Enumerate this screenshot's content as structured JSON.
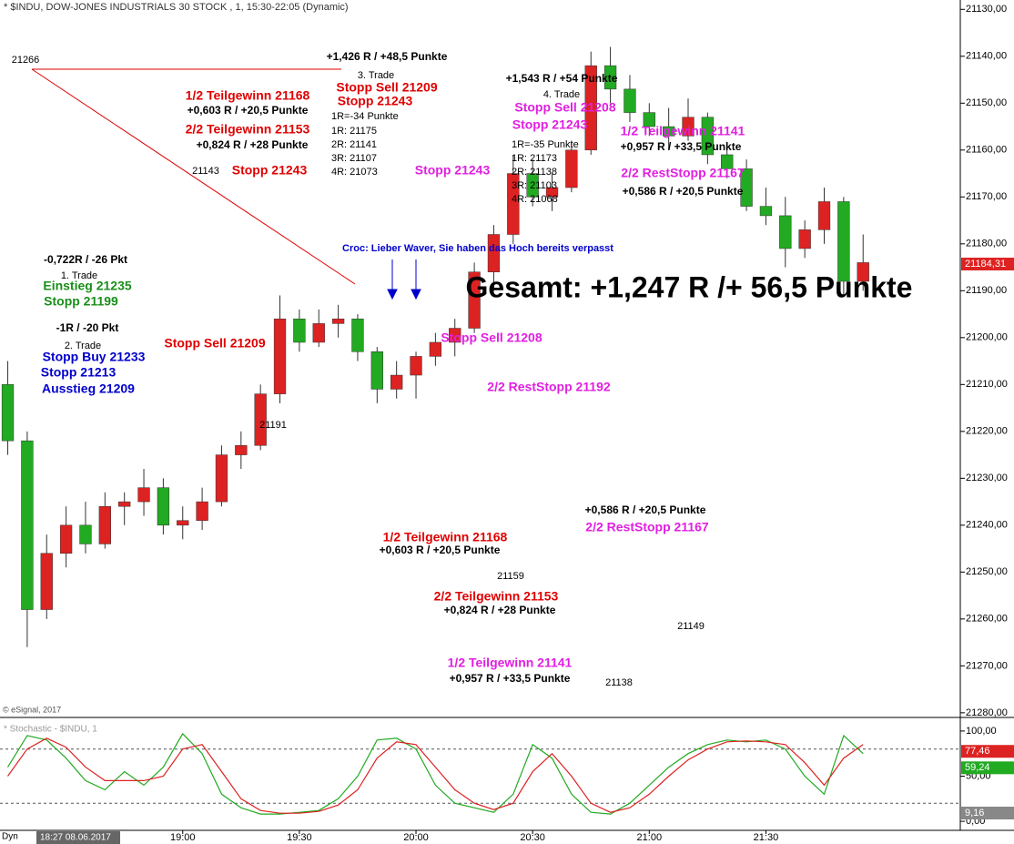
{
  "chart_data": [
    {
      "type": "candlestick",
      "title": "* $INDU, DOW-JONES INDUSTRIALS 30 STOCK , 1, 15:30-22:05 (Dynamic)",
      "copyright": "© eSignal, 2017",
      "x": [
        1095,
        1100,
        1105,
        1110,
        1115,
        1120,
        1125,
        1130,
        1135,
        1140,
        1145,
        1150,
        1155,
        1160,
        1165,
        1170,
        1175,
        1180,
        1185,
        1190,
        1195,
        1200,
        1205,
        1210,
        1215,
        1220,
        1225,
        1230,
        1235,
        1240,
        1245,
        1250,
        1255,
        1260,
        1265,
        1270,
        1275,
        1280,
        1285,
        1290,
        1295,
        1300,
        1305,
        1310,
        1315
      ],
      "open": [
        21210,
        21222,
        21258,
        21246,
        21240,
        21244,
        21236,
        21235,
        21232,
        21240,
        21239,
        21235,
        21225,
        21223,
        21212,
        21196,
        21201,
        21197,
        21196,
        21203,
        21211,
        21208,
        21204,
        21201,
        21198,
        21186,
        21178,
        21165,
        21170,
        21168,
        21160,
        21142,
        21147,
        21152,
        21155,
        21157,
        21153,
        21161,
        21164,
        21172,
        21174,
        21181,
        21177,
        21171,
        21188
      ],
      "high": [
        21225,
        21266,
        21260,
        21249,
        21246,
        21245,
        21240,
        21238,
        21242,
        21243,
        21241,
        21236,
        21228,
        21224,
        21214,
        21203,
        21202,
        21200,
        21205,
        21214,
        21213,
        21213,
        21206,
        21204,
        21199,
        21190,
        21180,
        21172,
        21173,
        21169,
        21161,
        21150,
        21154,
        21157,
        21160,
        21158,
        21163,
        21166,
        21173,
        21176,
        21185,
        21183,
        21180,
        21191,
        21190
      ],
      "low": [
        21205,
        21220,
        21242,
        21236,
        21235,
        21233,
        21233,
        21228,
        21230,
        21236,
        21232,
        21223,
        21220,
        21210,
        21191,
        21194,
        21194,
        21193,
        21195,
        21202,
        21205,
        21203,
        21199,
        21196,
        21184,
        21176,
        21161,
        21162,
        21165,
        21158,
        21139,
        21138,
        21144,
        21150,
        21151,
        21149,
        21152,
        21159,
        21162,
        21168,
        21170,
        21175,
        21168,
        21170,
        21178
      ],
      "close": [
        21222,
        21258,
        21246,
        21240,
        21244,
        21236,
        21235,
        21232,
        21240,
        21239,
        21235,
        21225,
        21223,
        21212,
        21196,
        21201,
        21197,
        21196,
        21203,
        21211,
        21208,
        21204,
        21201,
        21198,
        21186,
        21178,
        21165,
        21170,
        21168,
        21160,
        21142,
        21147,
        21152,
        21155,
        21157,
        21153,
        21161,
        21164,
        21172,
        21174,
        21181,
        21177,
        21171,
        21188,
        21184
      ],
      "up_color": "#22aa22",
      "down_color": "#dd2222",
      "xlim": [
        1093,
        1340
      ],
      "ylim": [
        21281,
        21128
      ],
      "yticks": [
        {
          "value": 21280,
          "label": "21280,00"
        },
        {
          "value": 21270,
          "label": "21270,00"
        },
        {
          "value": 21260,
          "label": "21260,00"
        },
        {
          "value": 21250,
          "label": "21250,00"
        },
        {
          "value": 21240,
          "label": "21240,00"
        },
        {
          "value": 21230,
          "label": "21230,00"
        },
        {
          "value": 21220,
          "label": "21220,00"
        },
        {
          "value": 21210,
          "label": "21210,00"
        },
        {
          "value": 21200,
          "label": "21200,00"
        },
        {
          "value": 21190,
          "label": "21190,00"
        },
        {
          "value": 21180,
          "label": "21180,00"
        },
        {
          "value": 21170,
          "label": "21170,00"
        },
        {
          "value": 21160,
          "label": "21160,00"
        },
        {
          "value": 21150,
          "label": "21150,00"
        },
        {
          "value": 21140,
          "label": "21140,00"
        },
        {
          "value": 21130,
          "label": "21130,00"
        }
      ],
      "last_price": {
        "value": 21184.31,
        "label": "21184,31",
        "color": "#dd2222"
      },
      "annotations": [
        {
          "text": "21266",
          "color": "#000000"
        },
        {
          "text": "+1,426 R / +48,5 Punkte",
          "color": "#000000"
        },
        {
          "text": "3. Trade",
          "color": "#000000"
        },
        {
          "text": "Stopp Sell 21209",
          "color": "#e00000"
        },
        {
          "text": "Stopp 21243",
          "color": "#e00000"
        },
        {
          "text": "1/2 Teilgewinn 21168",
          "color": "#e00000"
        },
        {
          "text": "+0,603 R / +20,5 Punkte",
          "color": "#000000"
        },
        {
          "text": "2/2 Teilgewinn 21153",
          "color": "#e00000"
        },
        {
          "text": "+0,824 R / +28 Punkte",
          "color": "#000000"
        },
        {
          "text": "1R=-34 Punkte",
          "color": "#000000"
        },
        {
          "text": "1R: 21175",
          "color": "#000000"
        },
        {
          "text": "2R: 21141",
          "color": "#000000"
        },
        {
          "text": "3R: 21107",
          "color": "#000000"
        },
        {
          "text": "4R: 21073",
          "color": "#000000"
        },
        {
          "text": "21143",
          "color": "#000000"
        },
        {
          "text": "Stopp 21243",
          "color": "#e00000"
        },
        {
          "text": "Stopp 21243",
          "color": "#e020e0"
        },
        {
          "text": "+1,543 R / +54 Punkte",
          "color": "#000000"
        },
        {
          "text": "4. Trade",
          "color": "#000000"
        },
        {
          "text": "Stopp Sell 21208",
          "color": "#e020e0"
        },
        {
          "text": "Stopp 21243",
          "color": "#e020e0"
        },
        {
          "text": "1R=-35 Punkte",
          "color": "#000000"
        },
        {
          "text": "1R: 21173",
          "color": "#000000"
        },
        {
          "text": "2R: 21138",
          "color": "#000000"
        },
        {
          "text": "3R: 21103",
          "color": "#000000"
        },
        {
          "text": "4R: 21068",
          "color": "#000000"
        },
        {
          "text": "1/2 Teilgewinn 21141",
          "color": "#e020e0"
        },
        {
          "text": "+0,957 R / +33,5 Punkte",
          "color": "#000000"
        },
        {
          "text": "2/2 RestStopp 21167",
          "color": "#e020e0"
        },
        {
          "text": "+0,586 R / +20,5 Punkte",
          "color": "#000000"
        },
        {
          "text": "Croc: Lieber Waver, Sie haben das Hoch bereits verpasst",
          "color": "#0000cc"
        },
        {
          "text": "Gesamt: +1,247 R /+ 56,5 Punkte",
          "color": "#000000"
        },
        {
          "text": "-0,722R / -26 Pkt",
          "color": "#000000"
        },
        {
          "text": "1. Trade",
          "color": "#000000"
        },
        {
          "text": "Einstieg 21235",
          "color": "#1a8f1a"
        },
        {
          "text": "Stopp 21199",
          "color": "#1a8f1a"
        },
        {
          "text": "-1R / -20 Pkt",
          "color": "#000000"
        },
        {
          "text": "2. Trade",
          "color": "#000000"
        },
        {
          "text": "Stopp Buy 21233",
          "color": "#0000cc"
        },
        {
          "text": "Stopp 21213",
          "color": "#0000cc"
        },
        {
          "text": "Ausstieg 21209",
          "color": "#0000cc"
        },
        {
          "text": "Stopp Sell 21209",
          "color": "#e00000"
        },
        {
          "text": "21191",
          "color": "#000000"
        },
        {
          "text": "Stopp Sell 21208",
          "color": "#e020e0"
        },
        {
          "text": "2/2 RestStopp 21192",
          "color": "#e020e0"
        },
        {
          "text": "+0,586 R / +20,5 Punkte",
          "color": "#000000"
        },
        {
          "text": "2/2 RestStopp 21167",
          "color": "#e020e0"
        },
        {
          "text": "1/2 Teilgewinn 21168",
          "color": "#e00000"
        },
        {
          "text": "+0,603 R / +20,5 Punkte",
          "color": "#000000"
        },
        {
          "text": "21159",
          "color": "#000000"
        },
        {
          "text": "2/2 Teilgewinn 21153",
          "color": "#e00000"
        },
        {
          "text": "+0,824 R / +28 Punkte",
          "color": "#000000"
        },
        {
          "text": "21149",
          "color": "#000000"
        },
        {
          "text": "1/2 Teilgewinn 21141",
          "color": "#e020e0"
        },
        {
          "text": "+0,957 R / +33,5 Punkte",
          "color": "#000000"
        },
        {
          "text": "21138",
          "color": "#000000"
        }
      ]
    },
    {
      "type": "line",
      "title": "* Stochastic - $INDU, 1",
      "prefix": "Dyn",
      "cursor_label": "18:27 08.06.2017",
      "x": [
        1095,
        1100,
        1105,
        1110,
        1115,
        1120,
        1125,
        1130,
        1135,
        1140,
        1145,
        1150,
        1155,
        1160,
        1165,
        1170,
        1175,
        1180,
        1185,
        1190,
        1195,
        1200,
        1205,
        1210,
        1215,
        1220,
        1225,
        1230,
        1235,
        1240,
        1245,
        1250,
        1255,
        1260,
        1265,
        1270,
        1275,
        1280,
        1285,
        1290,
        1295,
        1300,
        1305,
        1310,
        1315
      ],
      "series": [
        {
          "color": "#22aa22",
          "values": [
            60,
            95,
            90,
            70,
            45,
            35,
            55,
            40,
            60,
            97,
            75,
            30,
            15,
            8,
            8,
            10,
            12,
            25,
            50,
            90,
            92,
            80,
            40,
            20,
            15,
            10,
            30,
            85,
            70,
            30,
            10,
            8,
            20,
            40,
            60,
            75,
            85,
            90,
            88,
            90,
            80,
            50,
            30,
            95,
            75
          ]
        },
        {
          "color": "#dd2222",
          "values": [
            50,
            80,
            92,
            82,
            60,
            45,
            45,
            45,
            50,
            80,
            85,
            55,
            25,
            12,
            9,
            9,
            11,
            18,
            35,
            70,
            88,
            85,
            60,
            35,
            20,
            13,
            20,
            55,
            75,
            50,
            20,
            10,
            15,
            30,
            50,
            68,
            80,
            88,
            89,
            88,
            85,
            65,
            40,
            70,
            85
          ]
        }
      ],
      "levels": [
        80,
        20
      ],
      "value_tags": [
        {
          "value": 77.46,
          "label": "77,46",
          "color": "#dd2222"
        },
        {
          "value": 59.24,
          "label": "59,24",
          "color": "#22aa22"
        },
        {
          "value": 9.16,
          "label": "9,16",
          "color": "#888888"
        }
      ],
      "xlim": [
        1093,
        1340
      ],
      "ylim": [
        -10,
        113
      ],
      "yticks": [
        {
          "value": 100,
          "label": "100,00"
        },
        {
          "value": 50,
          "label": "50,00"
        },
        {
          "value": 0,
          "label": "0,00"
        }
      ],
      "xticks": [
        {
          "value": 1140,
          "label": "19:00"
        },
        {
          "value": 1170,
          "label": "19:30"
        },
        {
          "value": 1200,
          "label": "20:00"
        },
        {
          "value": 1230,
          "label": "20:30"
        },
        {
          "value": 1260,
          "label": "21:00"
        },
        {
          "value": 1290,
          "label": "21:30"
        }
      ]
    }
  ]
}
